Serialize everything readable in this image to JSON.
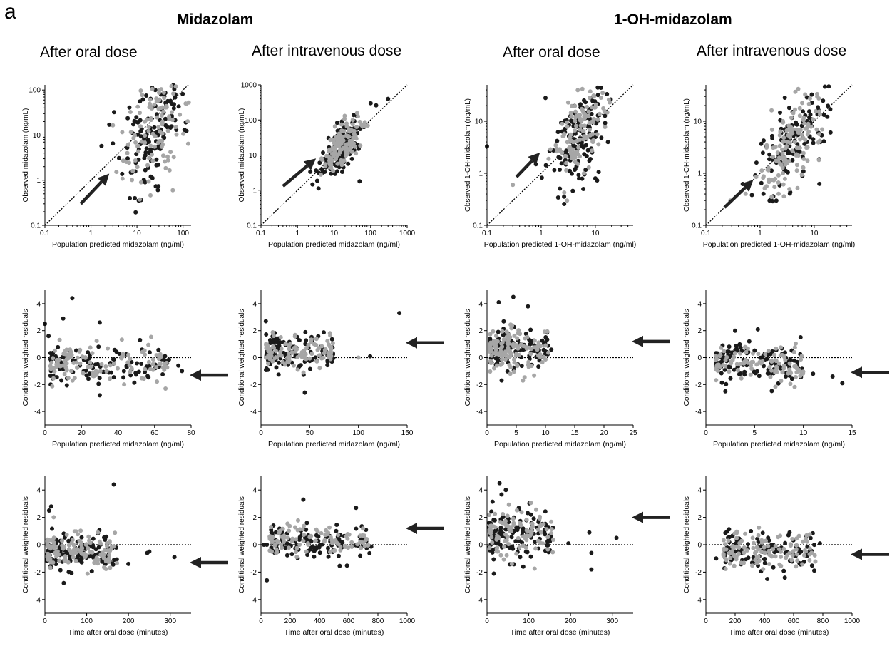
{
  "panel_letter": "a",
  "groups": [
    "Midazolam",
    "1-OH-midazolam"
  ],
  "column_titles": [
    "After oral dose",
    "After intravenous dose",
    "After oral dose",
    "After intravenous dose"
  ],
  "colors": {
    "series_dark": "#1a1a1a",
    "series_light": "#a6a6a6",
    "arrow": "#222222",
    "axis": "#000000"
  },
  "chart_data": [
    {
      "type": "scatter",
      "row": 1,
      "col": 1,
      "scale": "log",
      "xlabel": "Population predicted midazolam (ng/ml)",
      "ylabel": "Observed midazolam (ng/mL)",
      "xlim": [
        0.1,
        150
      ],
      "ylim": [
        0.1,
        130
      ],
      "xticks": [
        "0.1",
        "1",
        "10",
        "100"
      ],
      "yticks": [
        "0.1",
        "1",
        "10",
        "100"
      ],
      "identity_line": true,
      "arrow": {
        "direction": "up-right",
        "from": [
          0.6,
          0.3
        ],
        "to": [
          2.5,
          1.4
        ]
      },
      "cloud": {
        "x_center": 25,
        "x_spread": 0.35,
        "y_center": 15,
        "y_spread": 0.6
      },
      "points": [
        {
          "x": 2.5,
          "y": 17,
          "c": "dark"
        },
        {
          "x": 3,
          "y": 6.5,
          "c": "dark"
        },
        {
          "x": 7,
          "y": 0.4,
          "c": "dark"
        },
        {
          "x": 9,
          "y": 0.4,
          "c": "dark"
        },
        {
          "x": 20,
          "y": 1.2,
          "c": "dark"
        },
        {
          "x": 15,
          "y": 0.9,
          "c": "dark"
        },
        {
          "x": 60,
          "y": 0.6,
          "c": "light"
        },
        {
          "x": 25,
          "y": 100,
          "c": "dark"
        },
        {
          "x": 70,
          "y": 120,
          "c": "light"
        }
      ]
    },
    {
      "type": "scatter",
      "row": 1,
      "col": 2,
      "scale": "log",
      "xlabel": "Population predicted midazolam (ng/ml)",
      "ylabel": "Observed midazolam (ng/mL)",
      "xlim": [
        0.1,
        1000
      ],
      "ylim": [
        0.1,
        1000
      ],
      "xticks": [
        "0.1",
        "1",
        "10",
        "100",
        "1000"
      ],
      "yticks": [
        "0.1",
        "1",
        "10",
        "100",
        "1000"
      ],
      "identity_line": true,
      "arrow": {
        "direction": "up-right",
        "from": [
          0.4,
          1.3
        ],
        "to": [
          3.2,
          8
        ]
      },
      "cloud": {
        "x_center": 16,
        "x_spread": 0.3,
        "y_center": 17,
        "y_spread": 0.3
      },
      "points": [
        {
          "x": 50,
          "y": 1.8,
          "c": "dark"
        },
        {
          "x": 300,
          "y": 400,
          "c": "dark"
        },
        {
          "x": 100,
          "y": 300,
          "c": "dark"
        },
        {
          "x": 8,
          "y": 4,
          "c": "dark"
        }
      ]
    },
    {
      "type": "scatter",
      "row": 1,
      "col": 3,
      "scale": "log",
      "xlabel": "Population predicted 1-OH-midazolam (ng/ml)",
      "ylabel": "Observed 1-OH-midazolam (ng/mL)",
      "xlim": [
        0.1,
        50
      ],
      "ylim": [
        0.1,
        50
      ],
      "xticks": [
        "0.1",
        "1",
        "10"
      ],
      "yticks": [
        "0.1",
        "1",
        "10"
      ],
      "identity_line": true,
      "arrow": {
        "direction": "up-right",
        "from": [
          0.35,
          0.85
        ],
        "to": [
          0.95,
          2.5
        ]
      },
      "cloud": {
        "x_center": 5,
        "x_spread": 0.25,
        "y_center": 6,
        "y_spread": 0.45
      },
      "points": [
        {
          "x": 0.1,
          "y": 3.3,
          "c": "dark"
        },
        {
          "x": 1.2,
          "y": 28,
          "c": "dark"
        },
        {
          "x": 0.3,
          "y": 0.6,
          "c": "light"
        },
        {
          "x": 0.8,
          "y": 1.5,
          "c": "dark"
        },
        {
          "x": 6,
          "y": 0.5,
          "c": "dark"
        },
        {
          "x": 10,
          "y": 0.8,
          "c": "dark"
        },
        {
          "x": 3,
          "y": 0.3,
          "c": "light"
        }
      ]
    },
    {
      "type": "scatter",
      "row": 1,
      "col": 4,
      "scale": "log",
      "xlabel": "Population predicted 1-OH-midazolam (ng/ml)",
      "ylabel": "Observed 1-OH-midazolam (ng/mL)",
      "xlim": [
        0.1,
        50
      ],
      "ylim": [
        0.1,
        50
      ],
      "xticks": [
        "0.1",
        "1",
        "10"
      ],
      "yticks": [
        "0.1",
        "1",
        "10"
      ],
      "identity_line": true,
      "arrow": {
        "direction": "up-right",
        "from": [
          0.22,
          0.22
        ],
        "to": [
          0.75,
          0.75
        ]
      },
      "cloud": {
        "x_center": 3.8,
        "x_spread": 0.3,
        "y_center": 3.5,
        "y_spread": 0.38
      },
      "points": [
        {
          "x": 1.5,
          "y": 0.3,
          "c": "dark"
        },
        {
          "x": 2,
          "y": 0.3,
          "c": "dark"
        },
        {
          "x": 13,
          "y": 4,
          "c": "dark"
        }
      ]
    },
    {
      "type": "scatter",
      "row": 2,
      "col": 1,
      "scale": "linear",
      "xlabel": "Population predicted midazolam (ng/ml)",
      "ylabel": "Conditional weighted residuals",
      "xlim": [
        0,
        80
      ],
      "ylim": [
        -5,
        5
      ],
      "xticks": [
        "0",
        "20",
        "40",
        "60",
        "80"
      ],
      "yticks": [
        "-4",
        "-2",
        "0",
        "2",
        "4"
      ],
      "zero_line": true,
      "arrow": {
        "direction": "left",
        "y": -1.3
      },
      "cloud": {
        "x_min": 3,
        "x_max": 68,
        "y_center": -0.5,
        "y_sd": 0.7
      },
      "points": [
        {
          "x": 0,
          "y": 2.5,
          "c": "dark"
        },
        {
          "x": 2,
          "y": 1.6,
          "c": "dark"
        },
        {
          "x": 10,
          "y": 2.9,
          "c": "dark"
        },
        {
          "x": 15,
          "y": 4.4,
          "c": "dark"
        },
        {
          "x": 30,
          "y": 2.6,
          "c": "dark"
        },
        {
          "x": 30,
          "y": -2.8,
          "c": "dark"
        },
        {
          "x": 52,
          "y": 1.3,
          "c": "dark"
        },
        {
          "x": 73,
          "y": -0.6,
          "c": "dark"
        },
        {
          "x": 75,
          "y": -1.0,
          "c": "dark"
        },
        {
          "x": 66,
          "y": -2.3,
          "c": "light"
        }
      ]
    },
    {
      "type": "scatter",
      "row": 2,
      "col": 2,
      "scale": "linear",
      "xlabel": "Population predicted midazolam (ng/ml)",
      "ylabel": "Conditional weighted residuals",
      "xlim": [
        0,
        150
      ],
      "ylim": [
        -5,
        5
      ],
      "xticks": [
        "0",
        "50",
        "100",
        "150"
      ],
      "yticks": [
        "-4",
        "-2",
        "0",
        "2",
        "4"
      ],
      "zero_line": true,
      "arrow": {
        "direction": "left",
        "y": 1.1
      },
      "cloud": {
        "x_min": 5,
        "x_max": 75,
        "y_center": 0.4,
        "y_sd": 0.7
      },
      "points": [
        {
          "x": 142,
          "y": 3.3,
          "c": "dark"
        },
        {
          "x": 112,
          "y": 0.1,
          "c": "dark"
        },
        {
          "x": 100,
          "y": 0.0,
          "c": "light"
        },
        {
          "x": 45,
          "y": -2.6,
          "c": "dark"
        },
        {
          "x": 5,
          "y": 2.7,
          "c": "dark"
        }
      ]
    },
    {
      "type": "scatter",
      "row": 2,
      "col": 3,
      "scale": "linear",
      "xlabel": "Population predicted midazolam (ng/ml)",
      "ylabel": "Conditional weighted residuals",
      "xlim": [
        0,
        25
      ],
      "ylim": [
        -5,
        5
      ],
      "xticks": [
        "0",
        "5",
        "10",
        "15",
        "20",
        "25"
      ],
      "yticks": [
        "-4",
        "-2",
        "0",
        "2",
        "4"
      ],
      "zero_line": true,
      "arrow": {
        "direction": "left",
        "y": 1.2
      },
      "cloud": {
        "x_min": 0.5,
        "x_max": 10.5,
        "y_center": 0.7,
        "y_sd": 0.8
      },
      "points": [
        {
          "x": 4.5,
          "y": 4.5,
          "c": "dark"
        },
        {
          "x": 7,
          "y": 3.8,
          "c": "dark"
        },
        {
          "x": 2,
          "y": 4.1,
          "c": "dark"
        },
        {
          "x": 2.5,
          "y": -1.7,
          "c": "dark"
        },
        {
          "x": 11,
          "y": 0.6,
          "c": "dark"
        }
      ]
    },
    {
      "type": "scatter",
      "row": 2,
      "col": 4,
      "scale": "linear",
      "xlabel": "Population predicted midazolam (ng/ml)",
      "ylabel": "Conditional weighted residuals",
      "xlim": [
        0,
        15
      ],
      "ylim": [
        -5,
        5
      ],
      "xticks": [
        "0",
        "5",
        "10",
        "15"
      ],
      "yticks": [
        "-4",
        "-2",
        "0",
        "2",
        "4"
      ],
      "zero_line": true,
      "arrow": {
        "direction": "left",
        "y": -1.1
      },
      "cloud": {
        "x_min": 1,
        "x_max": 10,
        "y_center": -0.4,
        "y_sd": 0.7
      },
      "points": [
        {
          "x": 13,
          "y": -1.4,
          "c": "dark"
        },
        {
          "x": 14,
          "y": -1.9,
          "c": "dark"
        },
        {
          "x": 11,
          "y": -1.2,
          "c": "dark"
        },
        {
          "x": 2,
          "y": -2.5,
          "c": "dark"
        },
        {
          "x": 3,
          "y": 2.0,
          "c": "dark"
        }
      ]
    },
    {
      "type": "scatter",
      "row": 3,
      "col": 1,
      "scale": "linear",
      "xlabel": "Time after oral dose (minutes)",
      "ylabel": "Conditional weighted residuals",
      "xlim": [
        0,
        350
      ],
      "ylim": [
        -5,
        5
      ],
      "xticks": [
        "0",
        "100",
        "200",
        "300"
      ],
      "yticks": [
        "-4",
        "-2",
        "0",
        "2",
        "4"
      ],
      "zero_line": true,
      "arrow": {
        "direction": "left",
        "y": -1.3
      },
      "cloud": {
        "x_min": 5,
        "x_max": 175,
        "y_center": -0.5,
        "y_sd": 0.7
      },
      "points": [
        {
          "x": 10,
          "y": 2.5,
          "c": "dark"
        },
        {
          "x": 15,
          "y": 2.8,
          "c": "dark"
        },
        {
          "x": 165,
          "y": 4.4,
          "c": "dark"
        },
        {
          "x": 250,
          "y": -0.5,
          "c": "dark"
        },
        {
          "x": 245,
          "y": -0.6,
          "c": "dark"
        },
        {
          "x": 310,
          "y": -0.9,
          "c": "dark"
        },
        {
          "x": 200,
          "y": -1.4,
          "c": "dark"
        },
        {
          "x": 45,
          "y": -2.8,
          "c": "dark"
        }
      ]
    },
    {
      "type": "scatter",
      "row": 3,
      "col": 2,
      "scale": "linear",
      "xlabel": "Time after oral dose (minutes)",
      "ylabel": "Conditional weighted residuals",
      "xlim": [
        0,
        1000
      ],
      "ylim": [
        -5,
        5
      ],
      "xticks": [
        "0",
        "200",
        "400",
        "600",
        "800",
        "1000"
      ],
      "yticks": [
        "-4",
        "-2",
        "0",
        "2",
        "4"
      ],
      "zero_line": true,
      "arrow": {
        "direction": "left",
        "y": 1.2
      },
      "cloud": {
        "x_min": 60,
        "x_max": 760,
        "y_center": 0.3,
        "y_sd": 0.6
      },
      "points": [
        {
          "x": 40,
          "y": -2.6,
          "c": "dark"
        },
        {
          "x": 650,
          "y": 2.7,
          "c": "dark"
        },
        {
          "x": 290,
          "y": 3.3,
          "c": "dark"
        },
        {
          "x": 40,
          "y": 0.0,
          "c": "dark"
        },
        {
          "x": 20,
          "y": 0.0,
          "c": "dark"
        }
      ]
    },
    {
      "type": "scatter",
      "row": 3,
      "col": 3,
      "scale": "linear",
      "xlabel": "Time after oral dose (minutes)",
      "ylabel": "Conditional weighted residuals",
      "xlim": [
        0,
        350
      ],
      "ylim": [
        -5,
        5
      ],
      "xticks": [
        "0",
        "100",
        "200",
        "300"
      ],
      "yticks": [
        "-4",
        "-2",
        "0",
        "2",
        "4"
      ],
      "zero_line": true,
      "arrow": {
        "direction": "left",
        "y": 2.0
      },
      "cloud": {
        "x_min": 5,
        "x_max": 160,
        "y_center": 0.7,
        "y_sd": 0.9
      },
      "points": [
        {
          "x": 30,
          "y": 4.5,
          "c": "dark"
        },
        {
          "x": 45,
          "y": 4.0,
          "c": "dark"
        },
        {
          "x": 250,
          "y": -1.8,
          "c": "dark"
        },
        {
          "x": 250,
          "y": -0.6,
          "c": "dark"
        },
        {
          "x": 245,
          "y": 0.9,
          "c": "dark"
        },
        {
          "x": 310,
          "y": 0.5,
          "c": "dark"
        },
        {
          "x": 195,
          "y": 0.1,
          "c": "dark"
        }
      ]
    },
    {
      "type": "scatter",
      "row": 3,
      "col": 4,
      "scale": "linear",
      "xlabel": "Time after oral dose (minutes)",
      "ylabel": "Conditional weighted residuals",
      "xlim": [
        0,
        1000
      ],
      "ylim": [
        -5,
        5
      ],
      "xticks": [
        "0",
        "200",
        "400",
        "600",
        "800",
        "1000"
      ],
      "yticks": [
        "-4",
        "-2",
        "0",
        "2",
        "4"
      ],
      "zero_line": true,
      "arrow": {
        "direction": "left",
        "y": -0.7
      },
      "cloud": {
        "x_min": 120,
        "x_max": 750,
        "y_center": -0.4,
        "y_sd": 0.65
      },
      "points": [
        {
          "x": 420,
          "y": -2.5,
          "c": "dark"
        },
        {
          "x": 540,
          "y": -2.4,
          "c": "dark"
        },
        {
          "x": 780,
          "y": 0.1,
          "c": "dark"
        },
        {
          "x": 70,
          "y": -1.0,
          "c": "dark"
        }
      ]
    }
  ]
}
